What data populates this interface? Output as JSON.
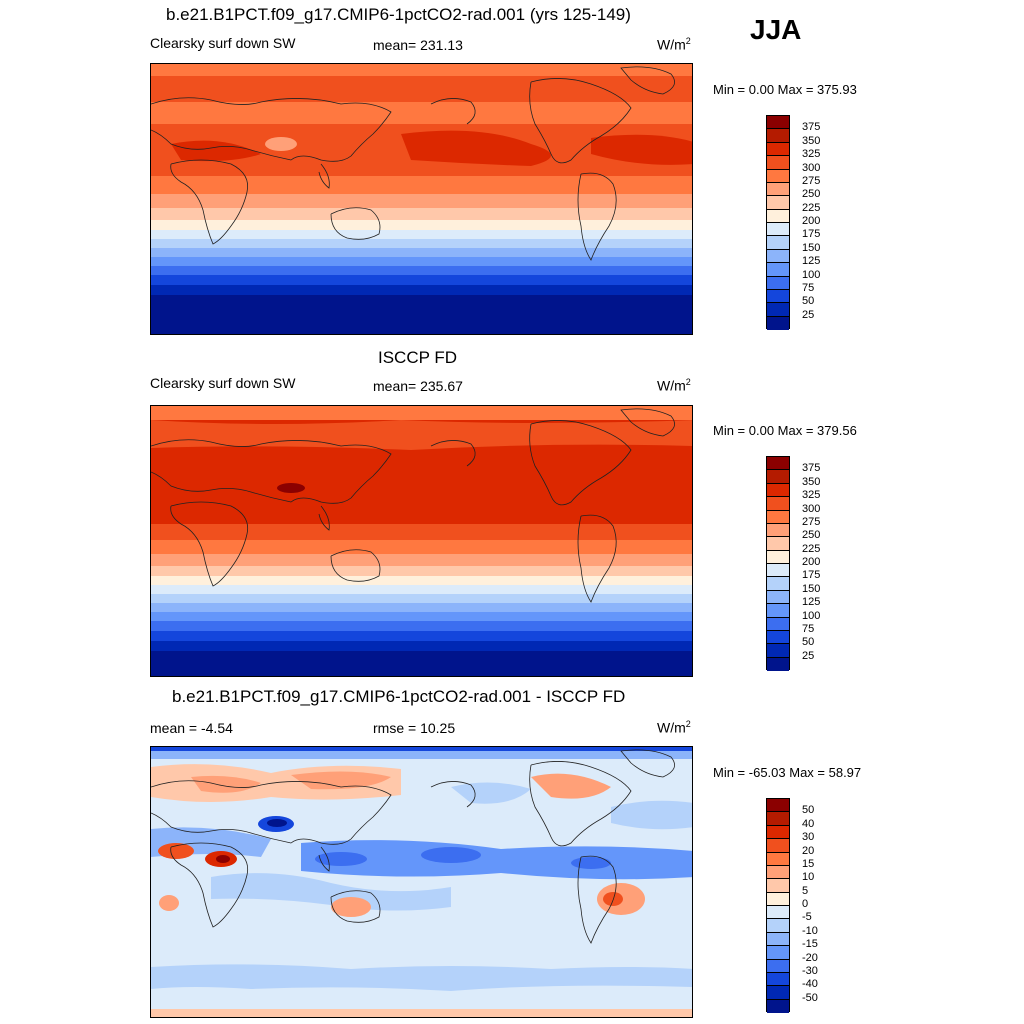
{
  "season": "JJA",
  "units_base": "W/m",
  "units_exp": "2",
  "panels": [
    {
      "title": "b.e21.B1PCT.f09_g17.CMIP6-1pctCO2-rad.001 (yrs 125-149)",
      "left_label": "Clearsky surf down SW",
      "center_label": "mean= 231.13",
      "min_max": "Min =   0.00 Max = 375.93"
    },
    {
      "title": "ISCCP FD",
      "left_label": "Clearsky surf down SW",
      "center_label": "mean= 235.67",
      "min_max": "Min =   0.00 Max = 379.56"
    },
    {
      "title": "b.e21.B1PCT.f09_g17.CMIP6-1pctCO2-rad.001 - ISCCP FD",
      "left_label": "mean =  -4.54",
      "center_label": "rmse =  10.25",
      "min_max": "Min = -65.03 Max =  58.97"
    }
  ],
  "colorbar_abs": {
    "labels": [
      "375",
      "350",
      "325",
      "300",
      "275",
      "250",
      "225",
      "200",
      "175",
      "150",
      "125",
      "100",
      "75",
      "50",
      "25"
    ],
    "colors": [
      "#8b0000",
      "#b41b00",
      "#dc2800",
      "#f0501e",
      "#ff7840",
      "#ffa078",
      "#ffc8aa",
      "#fff0dc",
      "#dcebfa",
      "#b4d2fa",
      "#8cb4fa",
      "#6496fa",
      "#3c6ef0",
      "#1446dc",
      "#0028b4",
      "#00148c"
    ]
  },
  "colorbar_diff": {
    "labels": [
      "50",
      "40",
      "30",
      "20",
      "15",
      "10",
      "5",
      "0",
      "-5",
      "-10",
      "-15",
      "-20",
      "-30",
      "-40",
      "-50"
    ],
    "colors": [
      "#8b0000",
      "#b41b00",
      "#dc2800",
      "#f0501e",
      "#ff7840",
      "#ffa078",
      "#ffc8aa",
      "#fff0dc",
      "#dcebfa",
      "#b4d2fa",
      "#8cb4fa",
      "#6496fa",
      "#3c6ef0",
      "#1446dc",
      "#0028b4",
      "#00148c"
    ]
  }
}
